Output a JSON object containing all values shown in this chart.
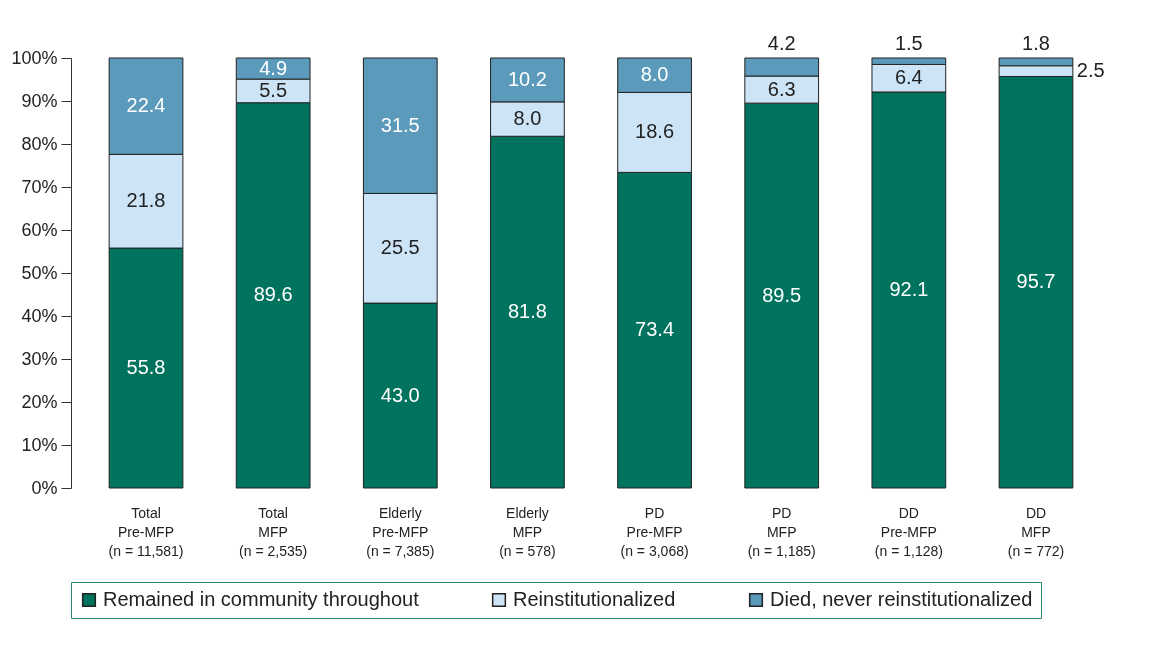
{
  "chart_data": {
    "type": "bar",
    "stacked": true,
    "categories": [
      "Total\nPre-MFP\n(n = 11,581)",
      "Total\nMFP\n(n = 2,535)",
      "Elderly\nPre-MFP\n(n = 7,385)",
      "Elderly\nMFP\n(n = 578)",
      "PD\nPre-MFP\n(n = 3,068)",
      "PD\nMFP\n(n = 1,185)",
      "DD\nPre-MFP\n(n = 1,128)",
      "DD\nMFP\n(n = 772)"
    ],
    "series": [
      {
        "name": "Remained in community throughout",
        "color": "#00735f",
        "values": [
          55.8,
          89.6,
          43.0,
          81.8,
          73.4,
          89.5,
          92.1,
          95.7
        ],
        "value_labels": [
          "55.8",
          "89.6",
          "43.0",
          "81.8",
          "73.4",
          "89.5",
          "92.1",
          "95.7"
        ]
      },
      {
        "name": "Reinstitutionalized",
        "color": "#cde4f6",
        "values": [
          21.8,
          5.5,
          25.5,
          8.0,
          18.6,
          6.3,
          6.4,
          2.5
        ],
        "value_labels": [
          "21.8",
          "5.5",
          "25.5",
          "8.0",
          "18.6",
          "6.3",
          "6.4",
          "2.5"
        ]
      },
      {
        "name": "Died, never reinstitutionalized",
        "color": "#5b9abb",
        "values": [
          22.4,
          4.9,
          31.5,
          10.2,
          8.0,
          4.2,
          1.5,
          1.8
        ],
        "value_labels": [
          "22.4",
          "4.9",
          "31.5",
          "10.2",
          "8.0",
          "4.2",
          "1.5",
          "1.8"
        ]
      }
    ],
    "ylim": [
      0,
      100
    ],
    "yticks": [
      {
        "value": 0,
        "label": "0%"
      },
      {
        "value": 10,
        "label": "10%"
      },
      {
        "value": 20,
        "label": "20%"
      },
      {
        "value": 30,
        "label": "30%"
      },
      {
        "value": 40,
        "label": "40%"
      },
      {
        "value": 50,
        "label": "50%"
      },
      {
        "value": 60,
        "label": "60%"
      },
      {
        "value": 70,
        "label": "70%"
      },
      {
        "value": 80,
        "label": "80%"
      },
      {
        "value": 90,
        "label": "90%"
      },
      {
        "value": 100,
        "label": "100%"
      }
    ],
    "grid": false,
    "legend": "bottom"
  }
}
